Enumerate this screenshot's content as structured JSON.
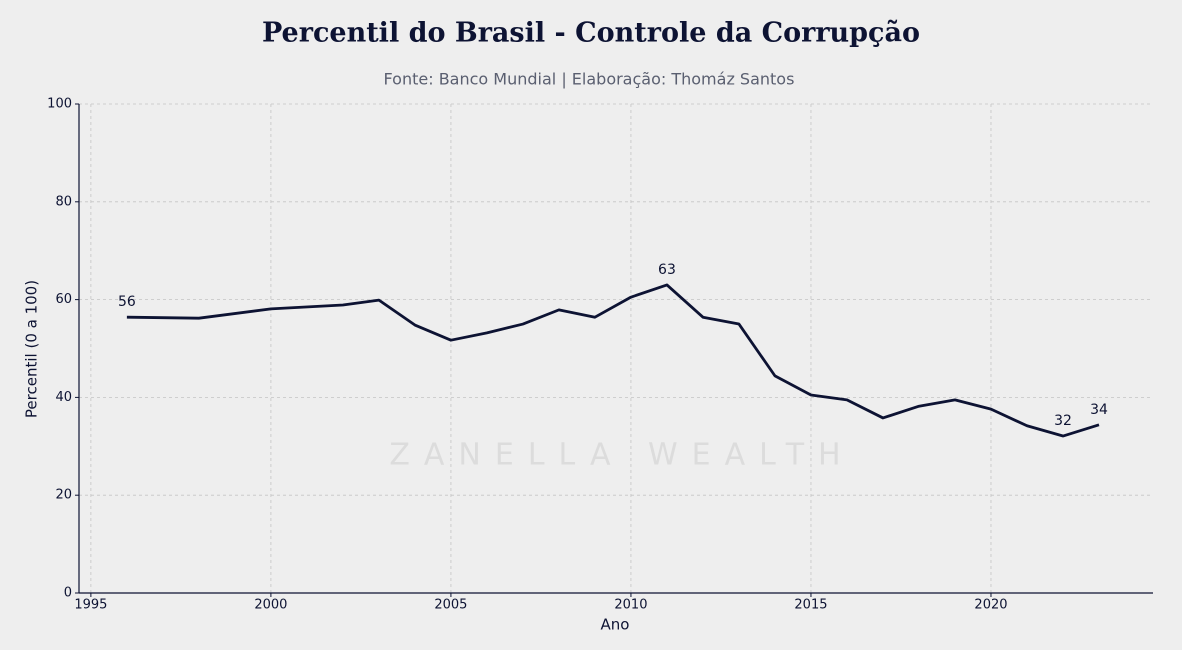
{
  "chart_data": {
    "type": "line",
    "title": "Percentil do Brasil - Controle da Corrupção",
    "subtitle": "Fonte: Banco Mundial | Elaboração: Thomáz Santos",
    "x_label": "Ano",
    "y_label": "Percentil (0 a 100)",
    "watermark": "ZANELLA WEALTH",
    "x": [
      1996,
      1998,
      2000,
      2002,
      2003,
      2004,
      2005,
      2006,
      2007,
      2008,
      2009,
      2010,
      2011,
      2012,
      2013,
      2014,
      2015,
      2016,
      2017,
      2018,
      2019,
      2020,
      2021,
      2022,
      2023
    ],
    "series": [
      {
        "name": "Percentil",
        "color": "#0d1333",
        "values": [
          56.4,
          56.2,
          58.1,
          58.9,
          59.9,
          54.8,
          51.7,
          53.2,
          55.0,
          57.9,
          56.4,
          60.5,
          63.0,
          56.4,
          55.0,
          44.4,
          40.5,
          39.5,
          35.8,
          38.2,
          39.5,
          37.6,
          34.2,
          32.1,
          34.4
        ],
        "value_labels": [
          "56",
          null,
          null,
          null,
          null,
          null,
          null,
          null,
          null,
          null,
          null,
          null,
          "63",
          null,
          null,
          null,
          null,
          null,
          null,
          null,
          null,
          null,
          null,
          "32",
          "34"
        ]
      }
    ],
    "xlim": [
      1994.67,
      2024.5
    ],
    "xticks": [
      1995,
      2000,
      2005,
      2010,
      2015,
      2020
    ],
    "ylim": [
      0,
      100
    ],
    "yticks": [
      0,
      20,
      40,
      60,
      80,
      100
    ],
    "grid": true
  }
}
